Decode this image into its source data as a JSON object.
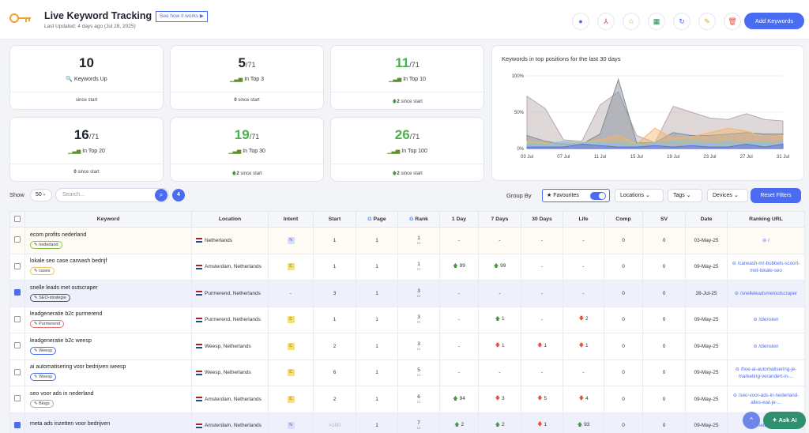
{
  "header": {
    "title": "Live Keyword Tracking",
    "how_it_works": "See how it works ▶",
    "updated": "Last Updated: 4 days ago (Jul 28, 2025)",
    "add_keywords": "Add Keywords",
    "toolbar_icons": [
      "tag-icon",
      "pdf-icon",
      "star-icon",
      "excel-icon",
      "refresh-icon",
      "edit-icon",
      "trash-icon"
    ]
  },
  "stats": [
    {
      "value": "10",
      "total": "",
      "label": "Keywords Up",
      "since": "since start",
      "since_value": "",
      "trend": ""
    },
    {
      "value": "5",
      "total": "/71",
      "label": "In Top 3",
      "since": "since start",
      "since_value": "0",
      "trend": ""
    },
    {
      "value": "11",
      "total": "/71",
      "label": "In Top 10",
      "since": "since start",
      "since_value": "2",
      "trend": "up"
    },
    {
      "value": "16",
      "total": "/71",
      "label": "In Top 20",
      "since": "since start",
      "since_value": "0",
      "trend": ""
    },
    {
      "value": "19",
      "total": "/71",
      "label": "In Top 30",
      "since": "since start",
      "since_value": "2",
      "trend": "up"
    },
    {
      "value": "26",
      "total": "/71",
      "label": "In Top 100",
      "since": "since start",
      "since_value": "2",
      "trend": "up"
    }
  ],
  "chart_data": {
    "type": "area",
    "title": "Keywords in top positions for the last 30 days",
    "x": [
      "03 Jul",
      "05 Jul",
      "07 Jul",
      "09 Jul",
      "11 Jul",
      "13 Jul",
      "15 Jul",
      "17 Jul",
      "19 Jul",
      "21 Jul",
      "23 Jul",
      "25 Jul",
      "27 Jul",
      "29 Jul",
      "31 Jul"
    ],
    "xticks": [
      "03 Jul",
      "07 Jul",
      "11 Jul",
      "15 Jul",
      "19 Jul",
      "23 Jul",
      "27 Jul",
      "31 Jul"
    ],
    "yticks": [
      "0%",
      "50%",
      "100%"
    ],
    "ylim": [
      0,
      100
    ],
    "series": [
      {
        "color": "#b9a9ab",
        "values": [
          72,
          55,
          12,
          10,
          60,
          78,
          18,
          8,
          58,
          50,
          42,
          40,
          48,
          40,
          38
        ]
      },
      {
        "color": "#7f8c95",
        "values": [
          18,
          10,
          6,
          6,
          20,
          95,
          8,
          8,
          22,
          18,
          18,
          20,
          22,
          20,
          20
        ]
      },
      {
        "color": "#f3b46c",
        "values": [
          10,
          8,
          4,
          8,
          12,
          18,
          6,
          28,
          14,
          16,
          22,
          28,
          24,
          16,
          18
        ]
      },
      {
        "color": "#8ec9b0",
        "values": [
          6,
          6,
          10,
          8,
          8,
          10,
          6,
          8,
          10,
          12,
          8,
          10,
          8,
          8,
          10
        ]
      },
      {
        "color": "#9bb5f0",
        "values": [
          4,
          4,
          8,
          6,
          6,
          6,
          4,
          6,
          8,
          6,
          6,
          8,
          6,
          6,
          8
        ]
      },
      {
        "color": "#5b6cd8",
        "values": [
          2,
          2,
          2,
          6,
          4,
          2,
          2,
          4,
          2,
          4,
          2,
          2,
          6,
          2,
          6
        ]
      }
    ]
  },
  "controls": {
    "show_label": "Show",
    "show_value": "50",
    "search_placeholder": "Search...",
    "count": "4",
    "group_by": "Group By",
    "favourites": "Favourites",
    "locations": "Locations",
    "tags": "Tags",
    "devices": "Devices",
    "reset": "Reset Filters"
  },
  "table": {
    "headers": [
      "Keyword",
      "Location",
      "Intent",
      "Start",
      "Page",
      "Rank",
      "1 Day",
      "7 Days",
      "30 Days",
      "Life",
      "Comp",
      "SV",
      "Date",
      "Ranking URL"
    ],
    "rows": [
      {
        "keyword": "ecom profits nederland",
        "tag": "nederland",
        "tagc": "g",
        "location": "Netherlands",
        "intent": "N",
        "start": "1",
        "page": "1",
        "rank": "1",
        "d1": "-",
        "d7": "-",
        "d30": "-",
        "life": "-",
        "comp": "0",
        "sv": "0",
        "date": "03-May-25",
        "url": "/",
        "checked": false
      },
      {
        "keyword": "lokale seo case carwash bedrijf",
        "tag": "cases",
        "tagc": "y",
        "location": "Amsterdam, Netherlands",
        "intent": "C",
        "start": "1",
        "page": "1",
        "rank": "1",
        "d1": "99",
        "d7": "99",
        "d30": "-",
        "life": "-",
        "comp": "0",
        "sv": "0",
        "date": "09-May-25",
        "url": "/carwash-mr-bubbels-scoort-met-lokale-seo",
        "checked": false
      },
      {
        "keyword": "snelle leads met outscraper",
        "tag": "SEO-strategie",
        "tagc": "dk",
        "location": "Purmerend, Netherlands",
        "intent": "-",
        "start": "3",
        "page": "1",
        "rank": "3",
        "d1": "-",
        "d7": "-",
        "d30": "-",
        "life": "-",
        "comp": "0",
        "sv": "0",
        "date": "28-Jul-25",
        "url": "/snelleleadsmetoutscraper",
        "checked": true
      },
      {
        "keyword": "leadgeneratie b2c purmerend",
        "tag": "Purmerend",
        "tagc": "r",
        "location": "Purmerend, Netherlands",
        "intent": "C",
        "start": "1",
        "page": "1",
        "rank": "3",
        "d1": "-",
        "d7": "1",
        "d30": "-",
        "life": "2",
        "comp": "0",
        "sv": "0",
        "date": "09-May-25",
        "url": "/diensten",
        "checked": false
      },
      {
        "keyword": "leadgeneratie b2c weesp",
        "tag": "Weesp",
        "tagc": "b",
        "location": "Weesp, Netherlands",
        "intent": "C",
        "start": "2",
        "page": "1",
        "rank": "3",
        "d1": "-",
        "d7": "1",
        "d30": "1",
        "life": "1",
        "comp": "0",
        "sv": "0",
        "date": "09-May-25",
        "url": "/diensten",
        "checked": false
      },
      {
        "keyword": "ai automatisering voor bedrijven weesp",
        "tag": "Weesp",
        "tagc": "b",
        "location": "Weesp, Netherlands",
        "intent": "C",
        "start": "6",
        "page": "1",
        "rank": "5",
        "d1": "-",
        "d7": "-",
        "d30": "-",
        "life": "-",
        "comp": "0",
        "sv": "0",
        "date": "09-May-25",
        "url": "/hoe-ai-automatisering-je-marketing-verandert-in-...",
        "checked": false
      },
      {
        "keyword": "seo voor ads in nederland",
        "tag": "Blogs",
        "tagc": "gr",
        "location": "Amsterdam, Netherlands",
        "intent": "C",
        "start": "2",
        "page": "1",
        "rank": "6",
        "d1": "94",
        "d7": "3",
        "d30": "5",
        "life": "4",
        "comp": "0",
        "sv": "0",
        "date": "09-May-25",
        "url": "/seo-voor-ads-in-nederland-alles-wat-je-...",
        "checked": false
      },
      {
        "keyword": "meta ads inzetten voor bedrijven",
        "tag": "",
        "tagc": "gr",
        "location": "Amsterdam, Netherlands",
        "intent": "N",
        "start": ">100",
        "page": "1",
        "rank": "7",
        "d1": "2",
        "d7": "2",
        "d30": "1",
        "life": "93",
        "comp": "0",
        "sv": "0",
        "date": "09-May-25",
        "url": "/meta-ads-...",
        "checked": true
      }
    ]
  },
  "ask_ai": "Ask AI"
}
